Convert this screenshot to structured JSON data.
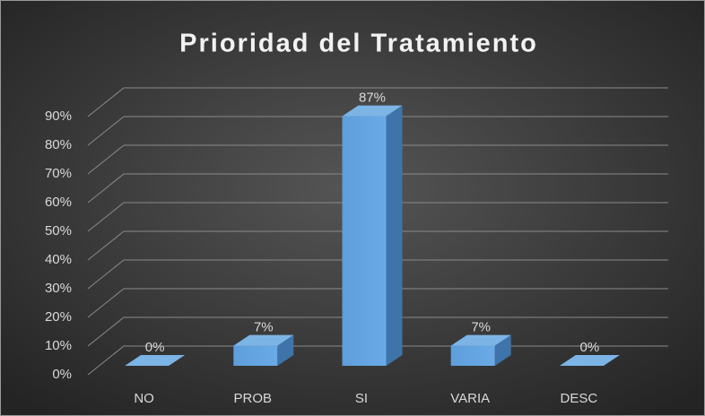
{
  "chart_data": {
    "type": "bar3d",
    "title": "Prioridad del Tratamiento",
    "categories": [
      "NO",
      "PROB",
      "SI",
      "VARIA",
      "DESC"
    ],
    "values": [
      0,
      7,
      87,
      7,
      0
    ],
    "value_labels": [
      "0%",
      "7%",
      "87%",
      "7%",
      "0%"
    ],
    "color": "#5b9bd5",
    "ylim": [
      0,
      90
    ],
    "yticks": [
      {
        "value": 0,
        "label": "0%"
      },
      {
        "value": 10,
        "label": "10%"
      },
      {
        "value": 20,
        "label": "20%"
      },
      {
        "value": 30,
        "label": "30%"
      },
      {
        "value": 40,
        "label": "40%"
      },
      {
        "value": 50,
        "label": "50%"
      },
      {
        "value": 60,
        "label": "60%"
      },
      {
        "value": 70,
        "label": "70%"
      },
      {
        "value": 80,
        "label": "80%"
      },
      {
        "value": 90,
        "label": "90%"
      }
    ],
    "grid": true
  }
}
